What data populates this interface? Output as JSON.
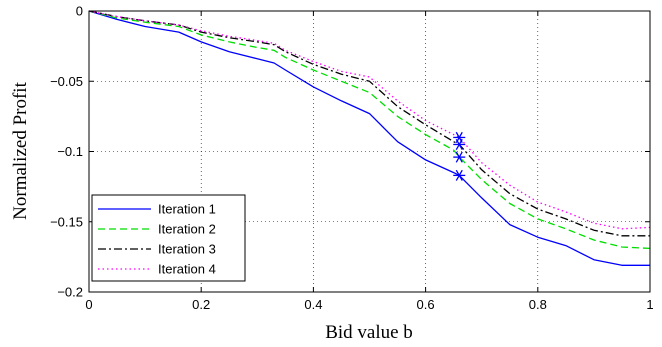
{
  "chart_data": {
    "type": "line",
    "title": "",
    "xlabel": "Bid value b",
    "ylabel": "Normalized Profit",
    "xlim": [
      0,
      1
    ],
    "ylim": [
      -0.2,
      0
    ],
    "xticks": [
      0,
      0.2,
      0.4,
      0.6,
      0.8,
      1
    ],
    "yticks": [
      0,
      -0.05,
      -0.1,
      -0.15,
      -0.2
    ],
    "xtick_labels": [
      "0",
      "0.2",
      "0.4",
      "0.6",
      "0.8",
      "1"
    ],
    "ytick_labels": [
      "0",
      "−0.05",
      "−0.1",
      "−0.15",
      "−0.2"
    ],
    "grid": true,
    "legend_position": "bottom-left",
    "series": [
      {
        "name": "Iteration 1",
        "color": "#0000ff",
        "style": "solid",
        "x": [
          0,
          0.05,
          0.1,
          0.16,
          0.2,
          0.25,
          0.3,
          0.33,
          0.35,
          0.4,
          0.45,
          0.5,
          0.55,
          0.6,
          0.65,
          0.66,
          0.7,
          0.75,
          0.8,
          0.85,
          0.9,
          0.95,
          1.0
        ],
        "y": [
          0,
          -0.006,
          -0.011,
          -0.015,
          -0.022,
          -0.029,
          -0.034,
          -0.037,
          -0.042,
          -0.054,
          -0.064,
          -0.073,
          -0.093,
          -0.106,
          -0.115,
          -0.117,
          -0.133,
          -0.152,
          -0.161,
          -0.167,
          -0.177,
          -0.181,
          -0.181
        ]
      },
      {
        "name": "Iteration 2",
        "color": "#00dd00",
        "style": "dashed",
        "x": [
          0,
          0.05,
          0.1,
          0.16,
          0.2,
          0.25,
          0.3,
          0.33,
          0.35,
          0.4,
          0.45,
          0.5,
          0.55,
          0.6,
          0.65,
          0.66,
          0.7,
          0.75,
          0.8,
          0.85,
          0.9,
          0.95,
          1.0
        ],
        "y": [
          0,
          -0.005,
          -0.008,
          -0.011,
          -0.017,
          -0.022,
          -0.026,
          -0.028,
          -0.033,
          -0.042,
          -0.05,
          -0.058,
          -0.075,
          -0.088,
          -0.099,
          -0.104,
          -0.12,
          -0.137,
          -0.148,
          -0.155,
          -0.163,
          -0.168,
          -0.169
        ]
      },
      {
        "name": "Iteration 3",
        "color": "#000000",
        "style": "dashdot",
        "x": [
          0,
          0.05,
          0.1,
          0.16,
          0.2,
          0.25,
          0.3,
          0.33,
          0.35,
          0.4,
          0.45,
          0.5,
          0.55,
          0.6,
          0.65,
          0.66,
          0.7,
          0.75,
          0.8,
          0.85,
          0.9,
          0.95,
          1.0
        ],
        "y": [
          0,
          -0.004,
          -0.007,
          -0.01,
          -0.015,
          -0.019,
          -0.022,
          -0.024,
          -0.029,
          -0.038,
          -0.045,
          -0.05,
          -0.068,
          -0.081,
          -0.093,
          -0.095,
          -0.113,
          -0.13,
          -0.141,
          -0.148,
          -0.156,
          -0.16,
          -0.16
        ]
      },
      {
        "name": "Iteration 4",
        "color": "#ff00ff",
        "style": "dotted",
        "x": [
          0,
          0.05,
          0.1,
          0.16,
          0.2,
          0.25,
          0.3,
          0.33,
          0.35,
          0.4,
          0.45,
          0.5,
          0.55,
          0.6,
          0.65,
          0.66,
          0.7,
          0.75,
          0.8,
          0.85,
          0.9,
          0.95,
          1.0
        ],
        "y": [
          0,
          -0.004,
          -0.007,
          -0.01,
          -0.014,
          -0.018,
          -0.021,
          -0.023,
          -0.028,
          -0.036,
          -0.043,
          -0.047,
          -0.064,
          -0.078,
          -0.088,
          -0.09,
          -0.108,
          -0.124,
          -0.136,
          -0.143,
          -0.151,
          -0.155,
          -0.154
        ]
      }
    ],
    "markers": {
      "symbol": "*",
      "color": "#0000ff",
      "points": [
        {
          "x": 0.66,
          "y": -0.09
        },
        {
          "x": 0.66,
          "y": -0.095
        },
        {
          "x": 0.66,
          "y": -0.104
        },
        {
          "x": 0.66,
          "y": -0.117
        }
      ]
    }
  }
}
